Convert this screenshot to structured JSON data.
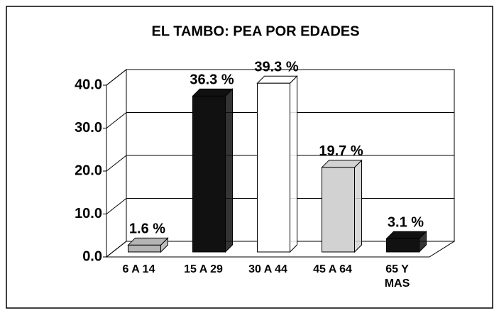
{
  "chart_data": {
    "type": "bar3d",
    "title": "EL TAMBO: PEA POR EDADES",
    "categories": [
      "6 A 14",
      "15 A 29",
      "30 A 44",
      "45 A 64",
      "65 Y\nMAS"
    ],
    "values": [
      1.6,
      36.3,
      39.3,
      19.7,
      3.1
    ],
    "value_labels": [
      "1.6 %",
      "36.3 %",
      "39.3 %",
      "19.7 %",
      "3.1 %"
    ],
    "colors": [
      "#b4b4b4",
      "#111111",
      "#ffffff",
      "#d2d2d2",
      "#111111"
    ],
    "ylim": [
      0,
      40
    ],
    "yticks": [
      {
        "value": 0,
        "label": "0.0"
      },
      {
        "value": 10,
        "label": "10.0"
      },
      {
        "value": 20,
        "label": "20.0"
      },
      {
        "value": 30,
        "label": "30.0"
      },
      {
        "value": 40,
        "label": "40.0"
      }
    ],
    "grid": true
  }
}
